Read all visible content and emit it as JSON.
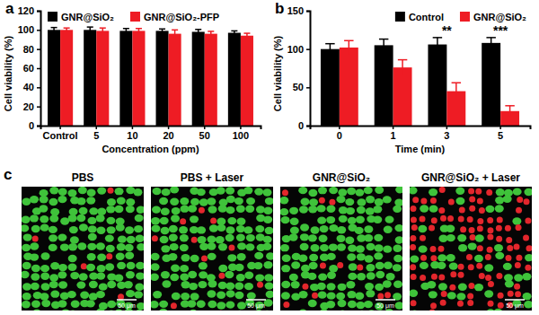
{
  "chart_data": [
    {
      "type": "bar",
      "title": "a",
      "categories": [
        "Control",
        "5",
        "10",
        "20",
        "50",
        "100"
      ],
      "series": [
        {
          "name": "GNR@SiO₂",
          "color": "#000000",
          "values": [
            100,
            100,
            99,
            99,
            98,
            97
          ],
          "errors": [
            2.5,
            3,
            2.5,
            2,
            2.5,
            2
          ]
        },
        {
          "name": "GNR@SiO₂-PFP",
          "color": "#ee1c24",
          "values": [
            100,
            99,
            99,
            96,
            96,
            94
          ],
          "errors": [
            2,
            3,
            2.5,
            4,
            2.5,
            2.5
          ]
        }
      ],
      "x_label": "Concentration (ppm)",
      "y_label": "Cell viability (%)",
      "ylim": [
        0,
        120
      ],
      "yticks": [
        0,
        20,
        40,
        60,
        80,
        100,
        120
      ],
      "legend": "upper left"
    },
    {
      "type": "bar",
      "title": "b",
      "categories": [
        "0",
        "1",
        "3",
        "5"
      ],
      "series": [
        {
          "name": "Control",
          "color": "#000000",
          "values": [
            100,
            105,
            106,
            108
          ],
          "errors": [
            7,
            8,
            9,
            7
          ]
        },
        {
          "name": "GNR@SiO₂",
          "color": "#ee1c24",
          "values": [
            102,
            76,
            45,
            19
          ],
          "errors": [
            9,
            10,
            11,
            7
          ]
        }
      ],
      "x_label": "Time (min)",
      "y_label": "Cell viability (%)",
      "ylim": [
        0,
        150
      ],
      "yticks": [
        0,
        50,
        100,
        150
      ],
      "legend": "upper right",
      "annotations": [
        {
          "text": "**",
          "x": "3"
        },
        {
          "text": "***",
          "x": "5"
        }
      ]
    }
  ],
  "images": {
    "title": "c",
    "panels": [
      {
        "title": "PBS",
        "scale_bar": "50 μm",
        "dead_fraction": 0.04
      },
      {
        "title": "PBS + Laser",
        "scale_bar": "50 μm",
        "dead_fraction": 0.05
      },
      {
        "title": "GNR@SiO₂",
        "scale_bar": "50 μm",
        "dead_fraction": 0.05
      },
      {
        "title": "GNR@SiO₂ + Laser",
        "scale_bar": "50 μm",
        "dead_fraction": 0.6
      }
    ]
  }
}
